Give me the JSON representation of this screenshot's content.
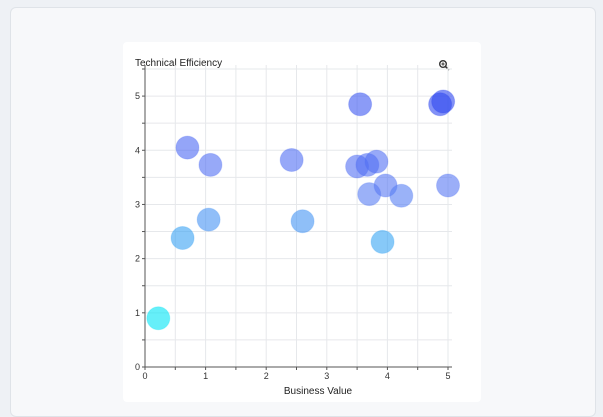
{
  "chart_data": {
    "type": "scatter",
    "title": "",
    "xlabel": "Business Value",
    "ylabel": "Technical Efficiency",
    "xlim": [
      0,
      5
    ],
    "ylim": [
      0,
      5.5
    ],
    "x_ticks": [
      "0",
      "1",
      "2",
      "3",
      "4",
      "5"
    ],
    "y_ticks": [
      "0",
      "1",
      "2",
      "3",
      "4",
      "5"
    ],
    "grid": true,
    "legend": "none",
    "color_scale": [
      "#00e5f5",
      "#5b7af4",
      "#2f48f0"
    ],
    "points": [
      {
        "x": 0.22,
        "y": 0.9
      },
      {
        "x": 0.62,
        "y": 2.38
      },
      {
        "x": 0.7,
        "y": 4.05
      },
      {
        "x": 1.05,
        "y": 2.72
      },
      {
        "x": 1.08,
        "y": 3.73
      },
      {
        "x": 2.42,
        "y": 3.82
      },
      {
        "x": 2.6,
        "y": 2.69
      },
      {
        "x": 3.5,
        "y": 3.7
      },
      {
        "x": 3.55,
        "y": 4.85
      },
      {
        "x": 3.67,
        "y": 3.73
      },
      {
        "x": 3.7,
        "y": 3.19
      },
      {
        "x": 3.82,
        "y": 3.79
      },
      {
        "x": 3.92,
        "y": 2.31
      },
      {
        "x": 3.97,
        "y": 3.35
      },
      {
        "x": 4.23,
        "y": 3.16
      },
      {
        "x": 4.87,
        "y": 4.85
      },
      {
        "x": 4.92,
        "y": 4.9
      },
      {
        "x": 5.0,
        "y": 3.35
      }
    ]
  },
  "toolbar": {
    "zoom_icon": "zoom-in-icon"
  }
}
